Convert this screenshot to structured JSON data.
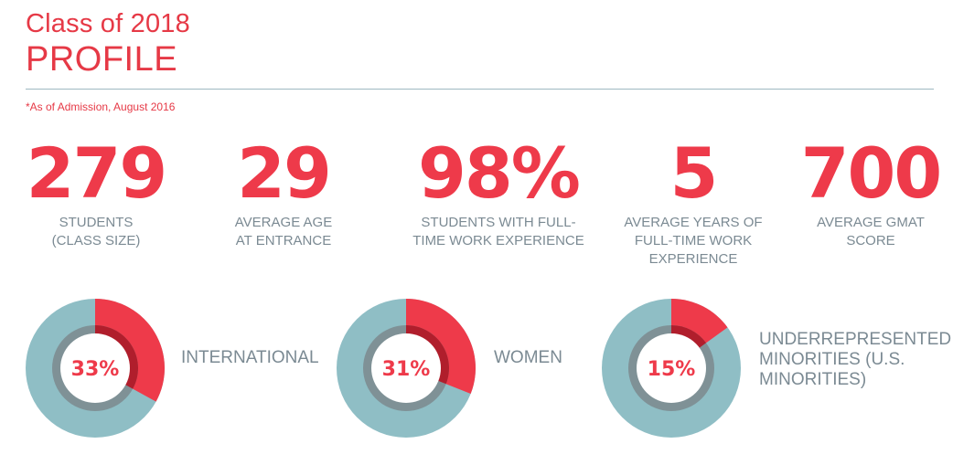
{
  "header": {
    "class_line": "Class of 2018",
    "profile_line": "PROFILE",
    "footnote": "*As of Admission, August 2016"
  },
  "stats": [
    {
      "value": "279",
      "label": "STUDENTS\n(CLASS SIZE)"
    },
    {
      "value": "29",
      "label": "AVERAGE AGE\nAT ENTRANCE"
    },
    {
      "value": "98%",
      "label": "STUDENTS WITH FULL-\nTIME WORK EXPERIENCE"
    },
    {
      "value": "5",
      "label": "AVERAGE YEARS OF\nFULL-TIME WORK\nEXPERIENCE"
    },
    {
      "value": "700",
      "label": "AVERAGE GMAT\nSCORE"
    }
  ],
  "colors": {
    "accent_red": "#ee3a4a",
    "dark_red": "#b01e2c",
    "teal": "#8fbec5",
    "gray": "#7f9196",
    "label_gray": "#7b8a93"
  },
  "chart_data": [
    {
      "type": "pie",
      "categories": [
        "INTERNATIONAL"
      ],
      "values": [
        33
      ],
      "percent_label": "33%",
      "label": "INTERNATIONAL"
    },
    {
      "type": "pie",
      "categories": [
        "WOMEN"
      ],
      "values": [
        31
      ],
      "percent_label": "31%",
      "label": "WOMEN"
    },
    {
      "type": "pie",
      "categories": [
        "UNDERREPRESENTED MINORITIES (U.S. MINORITIES)"
      ],
      "values": [
        15
      ],
      "percent_label": "15%",
      "label": "UNDERREPRESENTED\nMINORITIES (U.S.\nMINORITIES)"
    }
  ]
}
